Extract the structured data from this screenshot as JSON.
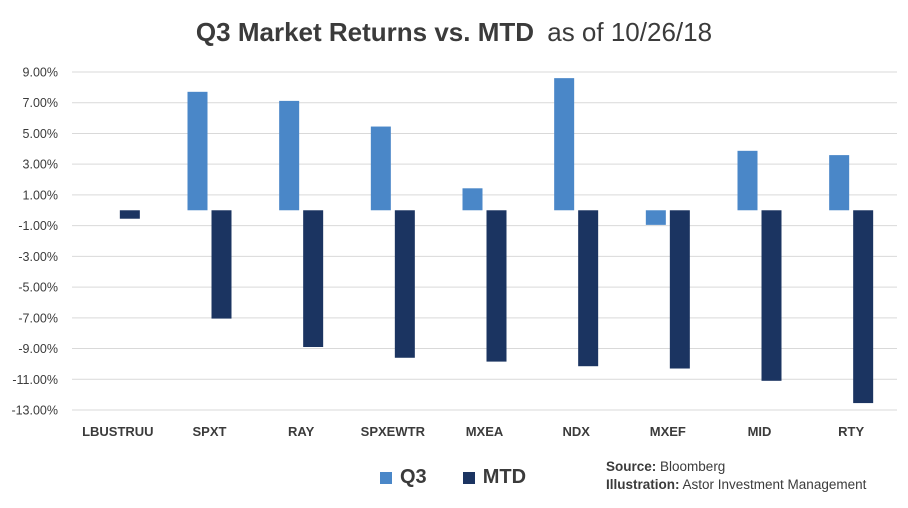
{
  "chart_data": {
    "type": "bar",
    "title_bold": "Q3 Market Returns vs. MTD",
    "title_rest": "as of 10/26/18",
    "categories": [
      "LBUSTRUU",
      "SPXT",
      "RAY",
      "SPXEWTR",
      "MXEA",
      "NDX",
      "MXEF",
      "MID",
      "RTY"
    ],
    "series": [
      {
        "name": "Q3",
        "color": "#4a87c8",
        "values": [
          0.0,
          7.71,
          7.12,
          5.45,
          1.43,
          8.6,
          -0.95,
          3.87,
          3.59
        ]
      },
      {
        "name": "MTD",
        "color": "#1b3461",
        "values": [
          -0.55,
          -7.05,
          -8.9,
          -9.6,
          -9.85,
          -10.15,
          -10.3,
          -11.1,
          -12.55
        ]
      }
    ],
    "y_ticks": [
      "9.00%",
      "7.00%",
      "5.00%",
      "3.00%",
      "1.00%",
      "-1.00%",
      "-3.00%",
      "-5.00%",
      "-7.00%",
      "-9.00%",
      "-11.00%",
      "-13.00%"
    ],
    "ylim": [
      -13,
      9
    ],
    "grid": true,
    "legend_position": "bottom-center"
  },
  "source": {
    "source_label": "Source:",
    "source_value": "Bloomberg",
    "illustration_label": "Illustration:",
    "illustration_value": "Astor Investment Management"
  }
}
